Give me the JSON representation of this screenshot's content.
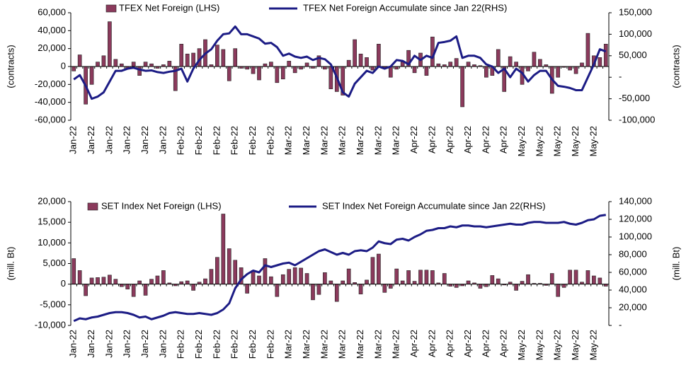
{
  "chart_data": [
    {
      "type": "bar_line",
      "ylabel": "(contracts)",
      "y2label": "(contracts)",
      "categories": [
        "Jan-22",
        null,
        null,
        "Jan-22",
        null,
        null,
        "Jan-22",
        null,
        null,
        "Jan-22",
        null,
        null,
        "Jan-22",
        null,
        null,
        "Jan-22",
        null,
        null,
        "Feb-22",
        null,
        null,
        "Feb-22",
        null,
        null,
        "Feb-22",
        null,
        null,
        "Feb-22",
        null,
        null,
        "Feb-22",
        null,
        null,
        "Feb-22",
        null,
        null,
        "Mar-22",
        null,
        null,
        "Mar-22",
        null,
        null,
        "Mar-22",
        null,
        null,
        "Mar-22",
        null,
        null,
        "Mar-22",
        null,
        null,
        "Mar-22",
        null,
        null,
        "Mar-22",
        null,
        null,
        "Apr-22",
        null,
        null,
        "Apr-22",
        null,
        null,
        "Apr-22",
        null,
        null,
        "Apr-22",
        null,
        null,
        "Apr-22",
        null,
        null,
        "Apr-22",
        null,
        null,
        "May-22",
        null,
        null,
        "May-22",
        null,
        null,
        "May-22",
        null,
        null,
        "May-22",
        null,
        null,
        "May-22",
        null,
        null
      ],
      "series": [
        {
          "name": "TFEX Net Foreign (LHS)",
          "color": "#8b3a5c",
          "values": [
            -5000,
            13000,
            -42000,
            -20000,
            5000,
            12000,
            50000,
            8000,
            3000,
            -3000,
            5000,
            -10000,
            5000,
            3000,
            -2000,
            2000,
            6000,
            -27000,
            25000,
            14000,
            15000,
            20000,
            30000,
            2000,
            24000,
            19000,
            -16000,
            20000,
            -2000,
            -3000,
            -8000,
            -15000,
            3000,
            5000,
            -18000,
            -14000,
            6000,
            -7000,
            -3000,
            4000,
            -2000,
            12000,
            -3000,
            -25000,
            -28000,
            -32000,
            7000,
            30000,
            14000,
            10000,
            -4000,
            25000,
            -2000,
            -12000,
            -3000,
            5000,
            18000,
            -7000,
            15000,
            -10000,
            33000,
            3000,
            2000,
            5000,
            9000,
            -45000,
            5000,
            2000,
            1000,
            -12000,
            -10000,
            19000,
            -28000,
            11000,
            5000,
            -20000,
            -5000,
            16000,
            8000,
            2000,
            -30000,
            -12000,
            -1000,
            -4000,
            -8000,
            4000,
            37000,
            12000,
            10000,
            25000
          ]
        },
        {
          "name": "TFEX Net Foreign Accumulate since Jan 22(RHS)",
          "color": "#1c1c85",
          "axis": "y2",
          "values": [
            -5000,
            5000,
            -20000,
            -50000,
            -45000,
            -35000,
            -10000,
            15000,
            15000,
            20000,
            22000,
            18000,
            15000,
            16000,
            12000,
            10000,
            13000,
            15000,
            20000,
            -10000,
            20000,
            40000,
            55000,
            65000,
            85000,
            100000,
            102000,
            118000,
            100000,
            100000,
            95000,
            90000,
            78000,
            80000,
            70000,
            50000,
            55000,
            48000,
            45000,
            48000,
            40000,
            45000,
            42000,
            30000,
            0,
            -35000,
            -45000,
            -15000,
            0,
            15000,
            10000,
            25000,
            20000,
            25000,
            40000,
            38000,
            30000,
            50000,
            40000,
            50000,
            45000,
            80000,
            82000,
            85000,
            95000,
            45000,
            50000,
            50000,
            45000,
            30000,
            25000,
            10000,
            20000,
            0,
            20000,
            10000,
            -10000,
            5000,
            15000,
            15000,
            -5000,
            -20000,
            -22000,
            -25000,
            -30000,
            -30000,
            0,
            30000,
            65000,
            60000
          ]
        }
      ],
      "ylim": [
        -60000,
        60000
      ],
      "yticks": [
        {
          "value": -60000,
          "label": "-60,000"
        },
        {
          "value": -40000,
          "label": "-40,000"
        },
        {
          "value": -20000,
          "label": "-20,000"
        },
        0,
        {
          "value": 20000,
          "label": "20,000"
        },
        {
          "value": 40000,
          "label": "40,000"
        },
        {
          "value": 60000,
          "label": "60,000"
        }
      ],
      "y2lim": [
        -100000,
        150000
      ],
      "y2ticks": [
        {
          "value": -100000,
          "label": "-100,000"
        },
        {
          "value": -50000,
          "label": "-50,000"
        },
        {
          "value": 0,
          "label": "-"
        },
        {
          "value": 50000,
          "label": "50,000"
        },
        {
          "value": 100000,
          "label": "100,000"
        },
        {
          "value": 150000,
          "label": "150,000"
        }
      ]
    },
    {
      "type": "bar_line",
      "ylabel": "(mill. Bt)",
      "y2label": "(mill. Bt)",
      "categories": [
        "Jan-22",
        null,
        null,
        "Jan-22",
        null,
        null,
        "Jan-22",
        null,
        null,
        "Jan-22",
        null,
        null,
        "Jan-22",
        null,
        null,
        "Jan-22",
        null,
        null,
        "Feb-22",
        null,
        null,
        "Feb-22",
        null,
        null,
        "Feb-22",
        null,
        null,
        "Feb-22",
        null,
        null,
        "Feb-22",
        null,
        null,
        "Feb-22",
        null,
        null,
        "Mar-22",
        null,
        null,
        "Mar-22",
        null,
        null,
        "Mar-22",
        null,
        null,
        "Mar-22",
        null,
        null,
        "Mar-22",
        null,
        null,
        "Mar-22",
        null,
        null,
        "Mar-22",
        null,
        null,
        "Apr-22",
        null,
        null,
        "Apr-22",
        null,
        null,
        "Apr-22",
        null,
        null,
        "Apr-22",
        null,
        null,
        "Apr-22",
        null,
        null,
        "Apr-22",
        null,
        null,
        "May-22",
        null,
        null,
        "May-22",
        null,
        null,
        "May-22",
        null,
        null,
        "May-22",
        null,
        null,
        "May-22",
        null,
        null
      ],
      "series": [
        {
          "name": "SET Index Net Foreign (LHS)",
          "color": "#8b3a5c",
          "values": [
            6200,
            3300,
            -2800,
            1500,
            1600,
            1700,
            2200,
            1200,
            -600,
            -1200,
            -3000,
            800,
            -2700,
            1200,
            2000,
            3300,
            300,
            -400,
            600,
            800,
            -1500,
            500,
            1300,
            3600,
            6500,
            17000,
            8600,
            5800,
            4000,
            -2200,
            3300,
            2000,
            6200,
            1800,
            -3000,
            2300,
            3600,
            4000,
            3900,
            2600,
            -3800,
            -2500,
            2800,
            800,
            -4200,
            800,
            3700,
            400,
            -2400,
            1000,
            6500,
            7300,
            -2000,
            -1000,
            3700,
            800,
            3300,
            700,
            3400,
            3400,
            3300,
            300,
            2600,
            -500,
            -800,
            -400,
            800,
            300,
            -1000,
            -600,
            2100,
            1300,
            -200,
            500,
            -1500,
            700,
            2300,
            200,
            200,
            -300,
            2600,
            -3000,
            -800,
            3400,
            3400,
            500,
            3300,
            2000,
            1500,
            -500
          ]
        },
        {
          "name": "SET Index Net Foreign Accumulate since Jan 22(RHS)",
          "color": "#1c1c85",
          "axis": "y2",
          "values": [
            5000,
            8000,
            7000,
            9000,
            10000,
            12000,
            14000,
            15000,
            15000,
            14000,
            12000,
            9000,
            10000,
            7000,
            9000,
            11000,
            14000,
            15000,
            14000,
            13000,
            13000,
            14000,
            13000,
            12000,
            14000,
            18000,
            25000,
            42000,
            52000,
            58000,
            62000,
            60000,
            68000,
            66000,
            68000,
            70000,
            71000,
            68000,
            72000,
            76000,
            80000,
            84000,
            86000,
            83000,
            80000,
            82000,
            80000,
            84000,
            85000,
            84000,
            88000,
            95000,
            93000,
            92000,
            97000,
            98000,
            96000,
            100000,
            103000,
            107000,
            108000,
            110000,
            110000,
            112000,
            111000,
            113000,
            113000,
            112000,
            112000,
            111000,
            112000,
            113000,
            114000,
            115000,
            114000,
            114000,
            116000,
            117000,
            117000,
            116000,
            116000,
            116000,
            117000,
            115000,
            114000,
            116000,
            119000,
            120000,
            124000,
            125000
          ]
        }
      ],
      "ylim": [
        -10000,
        20000
      ],
      "yticks": [
        {
          "value": -10000,
          "label": "-10,000"
        },
        {
          "value": -5000,
          "label": "-5,000"
        },
        0,
        {
          "value": 5000,
          "label": "5,000"
        },
        {
          "value": 10000,
          "label": "10,000"
        },
        {
          "value": 15000,
          "label": "15,000"
        },
        {
          "value": 20000,
          "label": "20,000"
        }
      ],
      "y2lim": [
        0,
        140000
      ],
      "y2ticks": [
        {
          "value": 0,
          "label": "-"
        },
        {
          "value": 20000,
          "label": "20,000"
        },
        {
          "value": 40000,
          "label": "40,000"
        },
        {
          "value": 60000,
          "label": "60,000"
        },
        {
          "value": 80000,
          "label": "80,000"
        },
        {
          "value": 100000,
          "label": "100,000"
        },
        {
          "value": 120000,
          "label": "120,000"
        },
        {
          "value": 140000,
          "label": "140,000"
        }
      ]
    }
  ]
}
